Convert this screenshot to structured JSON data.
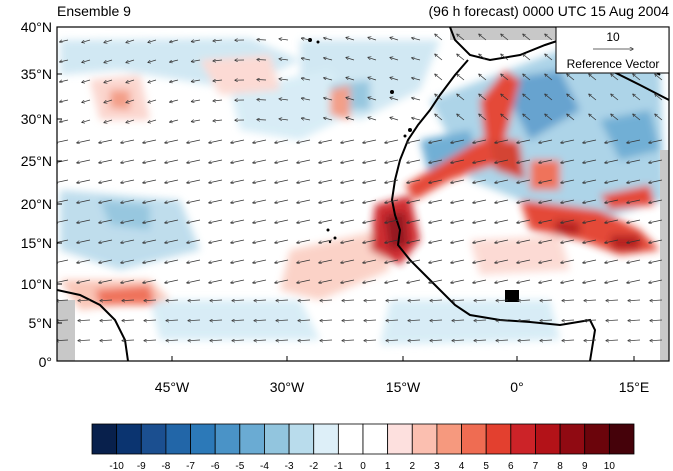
{
  "title_left": "Ensemble 9",
  "title_right": "(96 h forecast) 0000 UTC 15 Aug 2004",
  "reference_vector": {
    "magnitude": "10",
    "label": "Reference Vector"
  },
  "lat_ticks": [
    "40°N",
    "35°N",
    "30°N",
    "25°N",
    "20°N",
    "15°N",
    "10°N",
    "5°N",
    "0°"
  ],
  "lon_ticks": [
    "45°W",
    "30°W",
    "15°W",
    "0°",
    "15°E"
  ],
  "colorbar": {
    "labels": [
      "-10",
      "-9",
      "-8",
      "-7",
      "-6",
      "-5",
      "-4",
      "-3",
      "-2",
      "-1",
      "0",
      "1",
      "2",
      "3",
      "4",
      "5",
      "6",
      "7",
      "8",
      "9",
      "10"
    ],
    "colors": [
      "#08204c",
      "#0b3470",
      "#1b4f90",
      "#2266a8",
      "#2c79b8",
      "#4a93c7",
      "#6aabd3",
      "#92c5de",
      "#b9dcec",
      "#ddeff8",
      "#ffffff",
      "#ffffff",
      "#fde0de",
      "#fbbfb0",
      "#f6997e",
      "#ef6c52",
      "#e3402f",
      "#cc2328",
      "#b31218",
      "#900a12",
      "#6b040b",
      "#45020a"
    ]
  },
  "map_data": {
    "field": "shaded anomaly with wind vectors",
    "lon_range": [
      -60,
      20
    ],
    "lat_range": [
      0,
      40
    ]
  }
}
